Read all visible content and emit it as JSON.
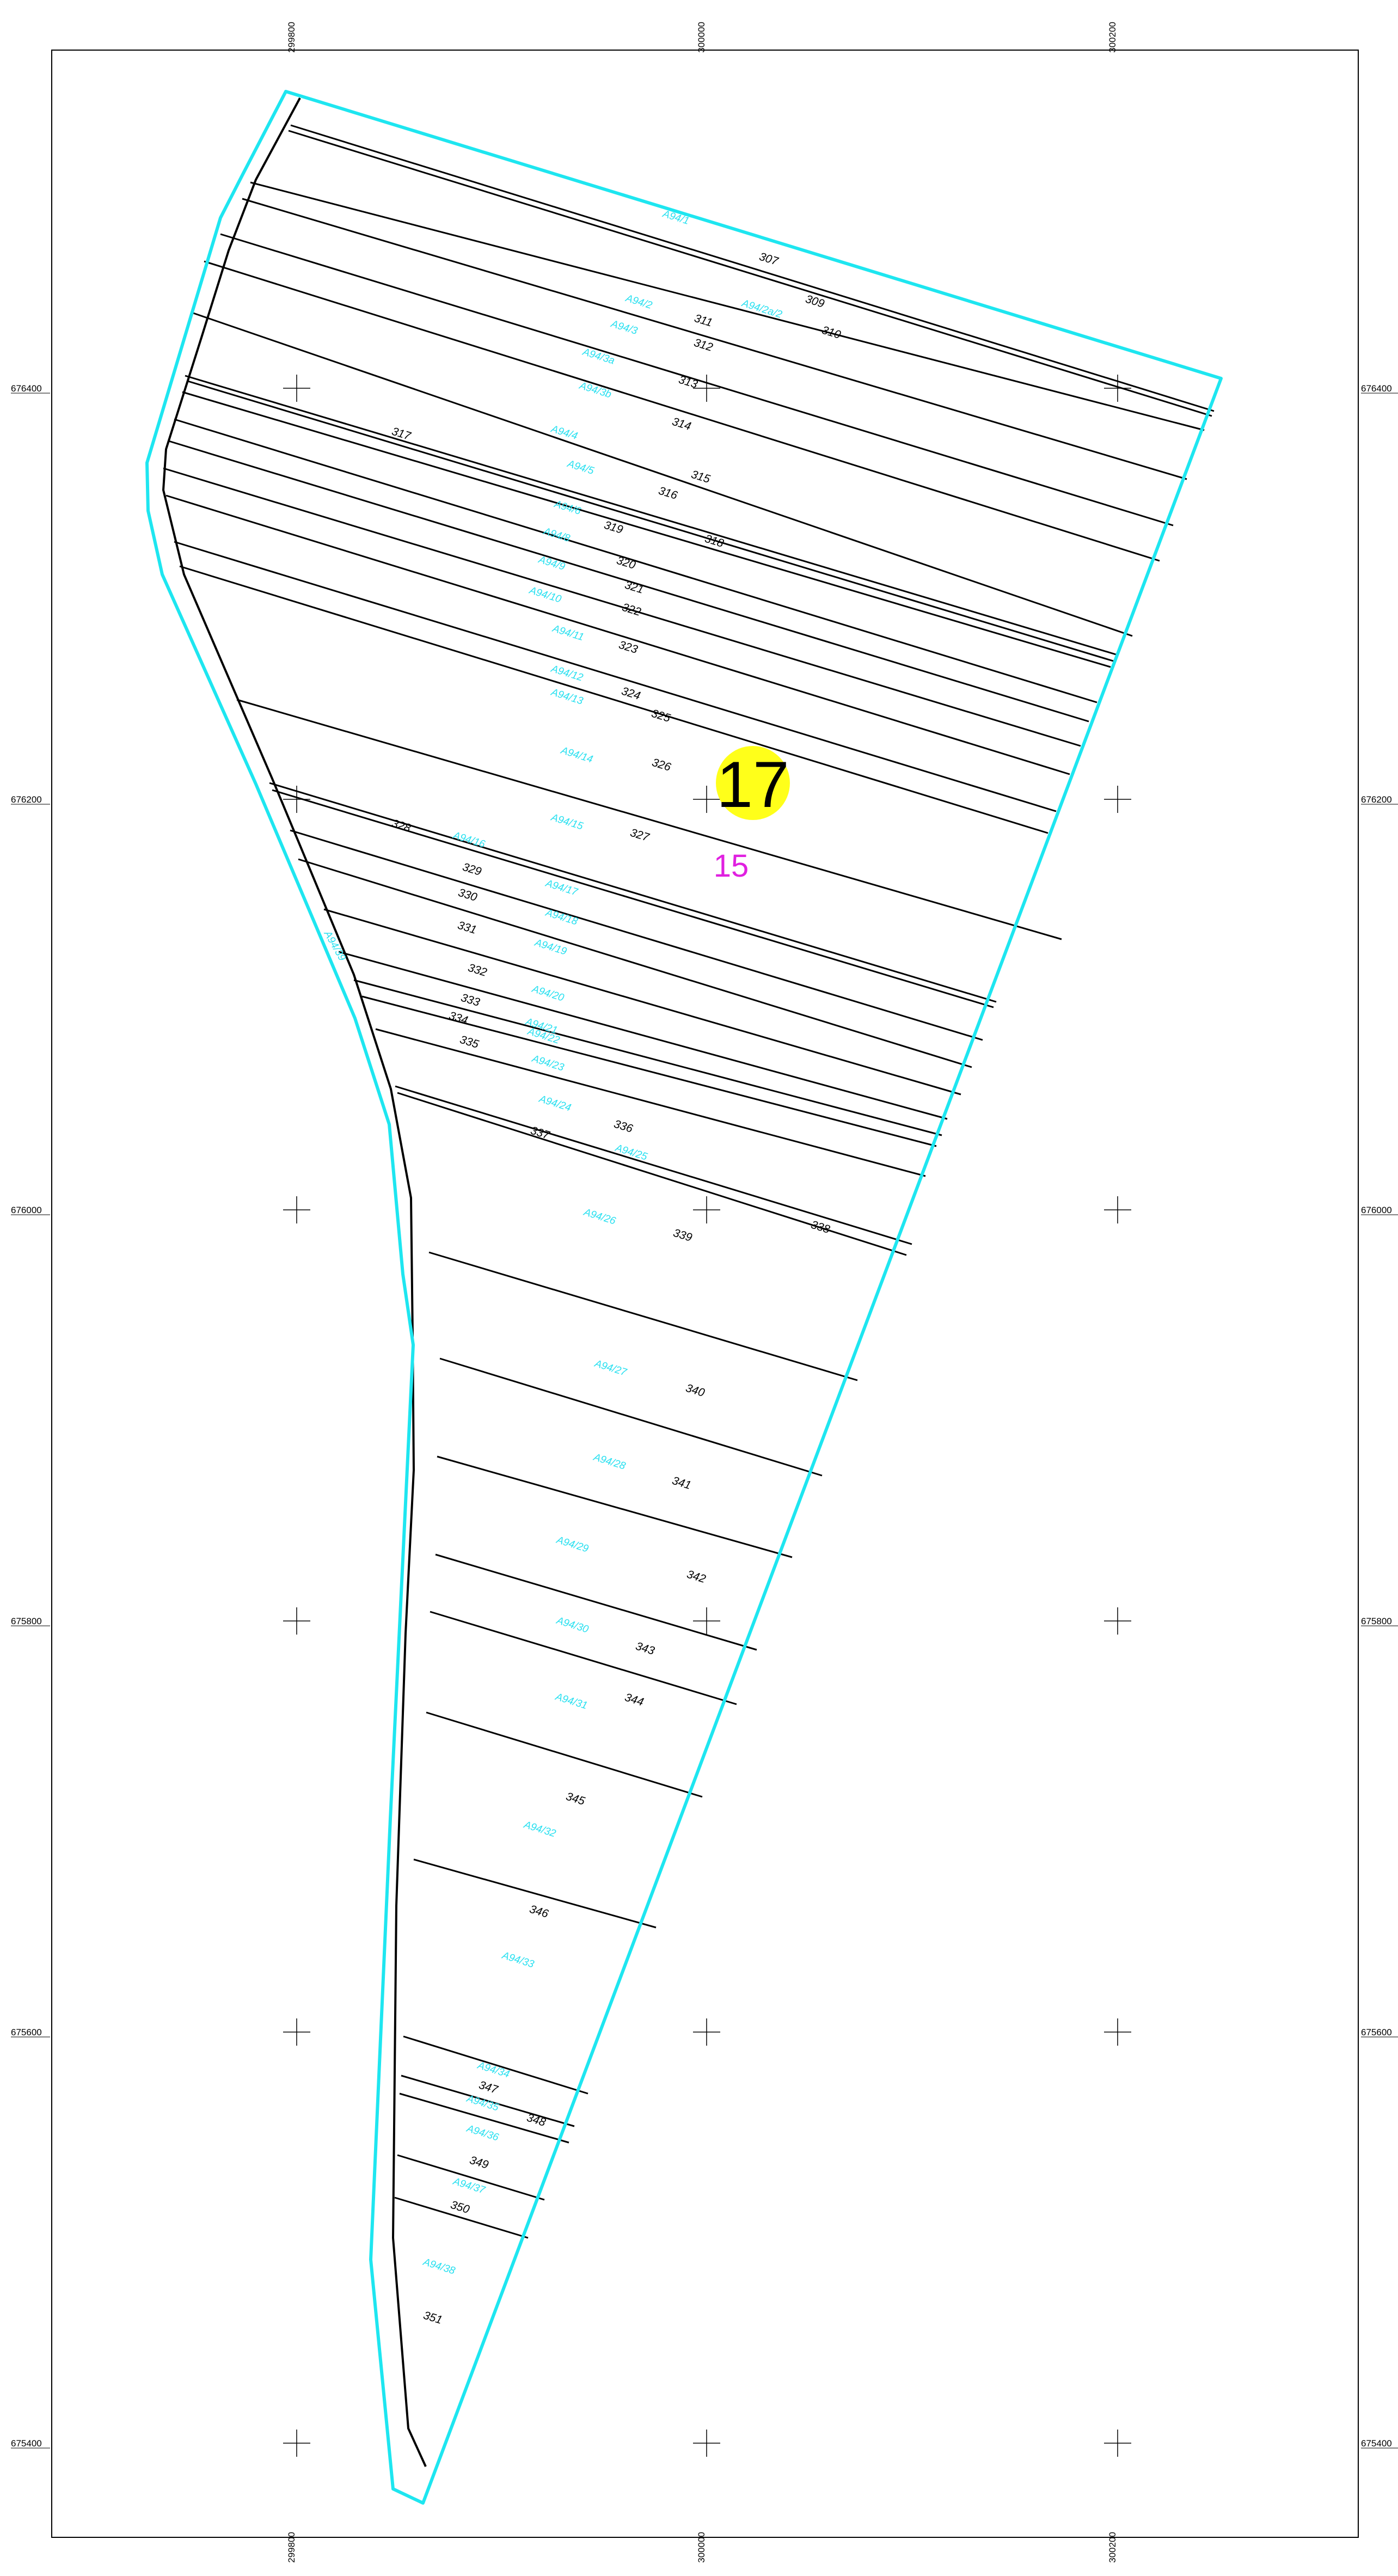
{
  "colors": {
    "boundary": "#1ee6f0",
    "parcel_line": "#000000",
    "plot_code_text": "#29e0f0",
    "badge_fill": "#ffff1a",
    "sub_label": "#e020e0",
    "frame": "#000000"
  },
  "grid": {
    "x_labels": [
      "299800",
      "300000",
      "300200"
    ],
    "y_labels": [
      "676400",
      "676200",
      "676000",
      "675800",
      "675600",
      "675400"
    ],
    "cross_marker": "plus-cross"
  },
  "badge": {
    "label": "17",
    "sub_label": "15"
  },
  "parcel_numbers": [
    "307",
    "309",
    "310",
    "311",
    "312",
    "313",
    "314",
    "315",
    "316",
    "317",
    "318",
    "319",
    "320",
    "321",
    "322",
    "323",
    "324",
    "325",
    "326",
    "327",
    "328",
    "329",
    "330",
    "331",
    "332",
    "333",
    "334",
    "335",
    "336",
    "337",
    "338",
    "339",
    "340",
    "341",
    "342",
    "343",
    "344",
    "345",
    "346",
    "347",
    "348",
    "349",
    "350",
    "351"
  ],
  "plot_codes": [
    "A94/1",
    "A94/2",
    "A94/2a/2",
    "A94/3",
    "A94/3a",
    "A94/3b",
    "A94/4",
    "A94/5",
    "A94/6",
    "A94/8",
    "A94/9",
    "A94/10",
    "A94/11",
    "A94/12",
    "A94/13",
    "A94/14",
    "A94/15",
    "A94/16",
    "A94/17",
    "A94/18",
    "A94/19",
    "A94/20",
    "A94/21",
    "A94/22",
    "A94/23",
    "A94/24",
    "A94/25",
    "A94/26",
    "A94/27",
    "A94/28",
    "A94/29",
    "A94/30",
    "A94/31",
    "A94/32",
    "A94/33",
    "A94/34",
    "A94/35",
    "A94/36",
    "A94/37",
    "A94/38",
    "A94/39"
  ]
}
